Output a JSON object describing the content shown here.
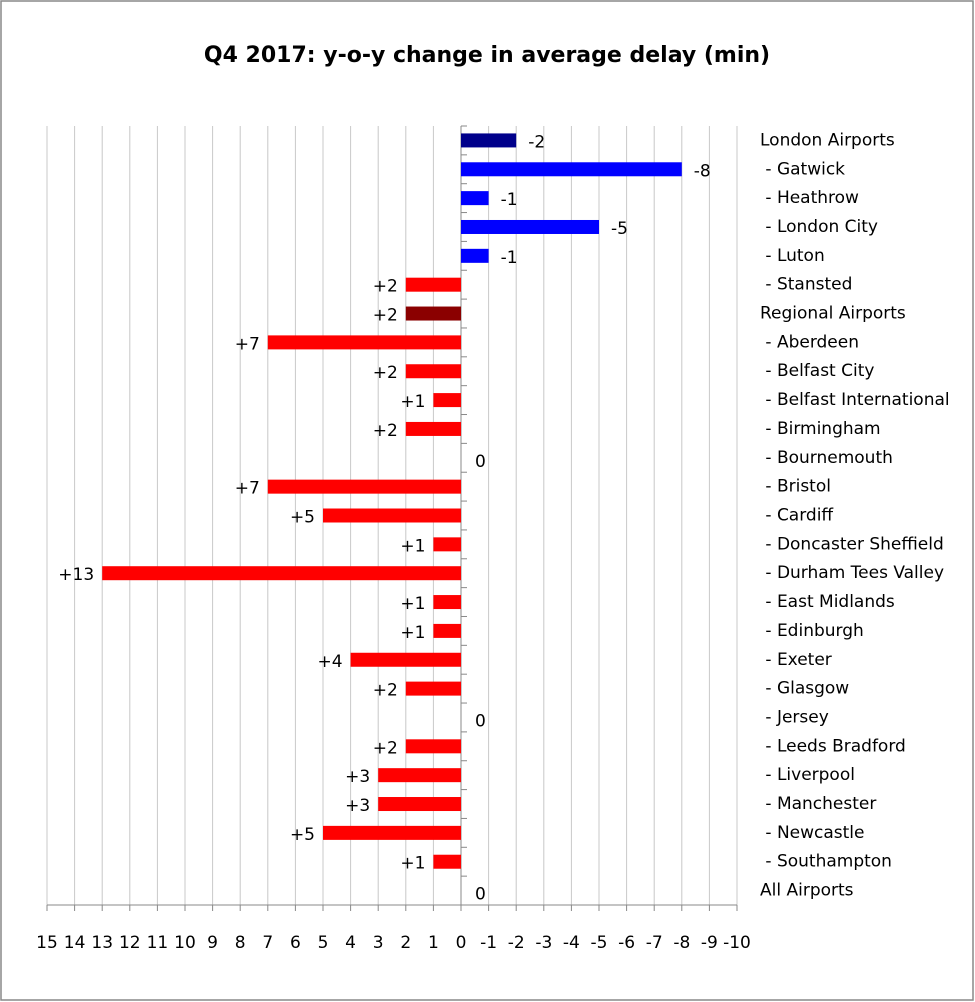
{
  "chart_data": {
    "type": "bar",
    "orientation": "horizontal",
    "title": "Q4 2017: y-o-y change in average delay (min)",
    "categories": [
      "London Airports",
      " - Gatwick",
      " - Heathrow",
      " - London City",
      " - Luton",
      " - Stansted",
      "Regional Airports",
      " - Aberdeen",
      " - Belfast City",
      " - Belfast International",
      " - Birmingham",
      " - Bournemouth",
      " - Bristol",
      " - Cardiff",
      " - Doncaster Sheffield",
      " - Durham Tees Valley",
      " - East Midlands",
      " - Edinburgh",
      " - Exeter",
      " - Glasgow",
      " - Jersey",
      " - Leeds Bradford",
      " - Liverpool",
      " - Manchester",
      " - Newcastle",
      " - Southampton",
      "All Airports"
    ],
    "values": [
      -2,
      -8,
      -1,
      -5,
      -1,
      2,
      2,
      7,
      2,
      1,
      2,
      0,
      7,
      5,
      1,
      13,
      1,
      1,
      4,
      2,
      0,
      2,
      3,
      3,
      5,
      1,
      0
    ],
    "value_labels": [
      "-2",
      "-8",
      "-1",
      "-5",
      "-1",
      "+2",
      "+2",
      "+7",
      "+2",
      "+1",
      "+2",
      "0",
      "+7",
      "+5",
      "+1",
      "+13",
      "+1",
      "+1",
      "+4",
      "+2",
      "0",
      "+2",
      "+3",
      "+3",
      "+5",
      "+1",
      "0"
    ],
    "colors": [
      "#00008b",
      "#0000ff",
      "#0000ff",
      "#0000ff",
      "#0000ff",
      "#ff0000",
      "#8b0000",
      "#ff0000",
      "#ff0000",
      "#ff0000",
      "#ff0000",
      "#ff0000",
      "#ff0000",
      "#ff0000",
      "#ff0000",
      "#ff0000",
      "#ff0000",
      "#ff0000",
      "#ff0000",
      "#ff0000",
      "#ff0000",
      "#ff0000",
      "#ff0000",
      "#ff0000",
      "#ff0000",
      "#ff0000",
      "#ff0000"
    ],
    "xlim": [
      15,
      -10
    ],
    "xticks": [
      15,
      14,
      13,
      12,
      11,
      10,
      9,
      8,
      7,
      6,
      5,
      4,
      3,
      2,
      1,
      0,
      -1,
      -2,
      -3,
      -4,
      -5,
      -6,
      -7,
      -8,
      -9,
      -10
    ],
    "grid": true
  }
}
